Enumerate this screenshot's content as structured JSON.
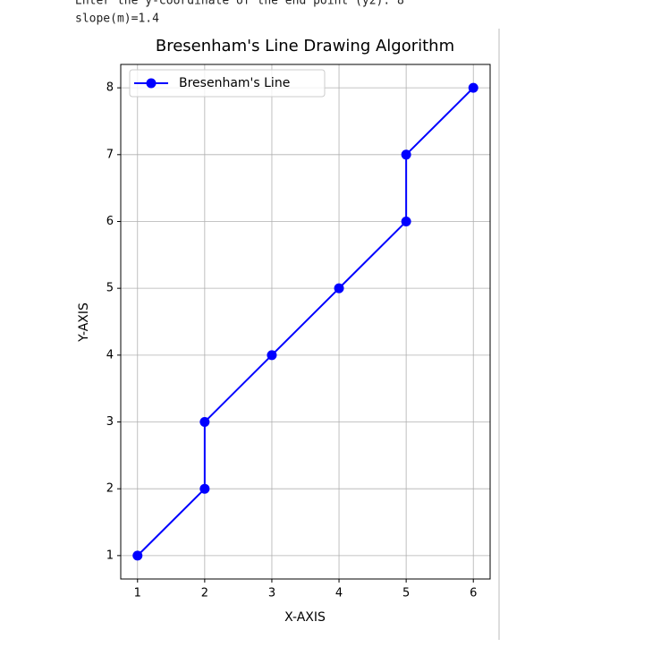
{
  "console": {
    "lines": [
      "Enter the y-coordinate of the end point (y2):  8",
      "slope(m)=1.4"
    ]
  },
  "chart_data": {
    "type": "line",
    "title": "Bresenham's Line Drawing Algorithm",
    "x_label": "X-AXIS",
    "y_label": "Y-AXIS",
    "x": [
      1,
      2,
      2,
      3,
      4,
      5,
      5,
      6
    ],
    "series": [
      {
        "name": "Bresenham's Line",
        "color": "blue",
        "values": [
          1,
          2,
          3,
          4,
          5,
          6,
          7,
          8
        ]
      }
    ],
    "xlim": [
      0.75,
      6.25
    ],
    "ylim": [
      0.65,
      8.35
    ],
    "xticks": [
      1,
      2,
      3,
      4,
      5,
      6
    ],
    "yticks": [
      1,
      2,
      3,
      4,
      5,
      6,
      7,
      8
    ],
    "grid": true,
    "legend": "upper left"
  }
}
